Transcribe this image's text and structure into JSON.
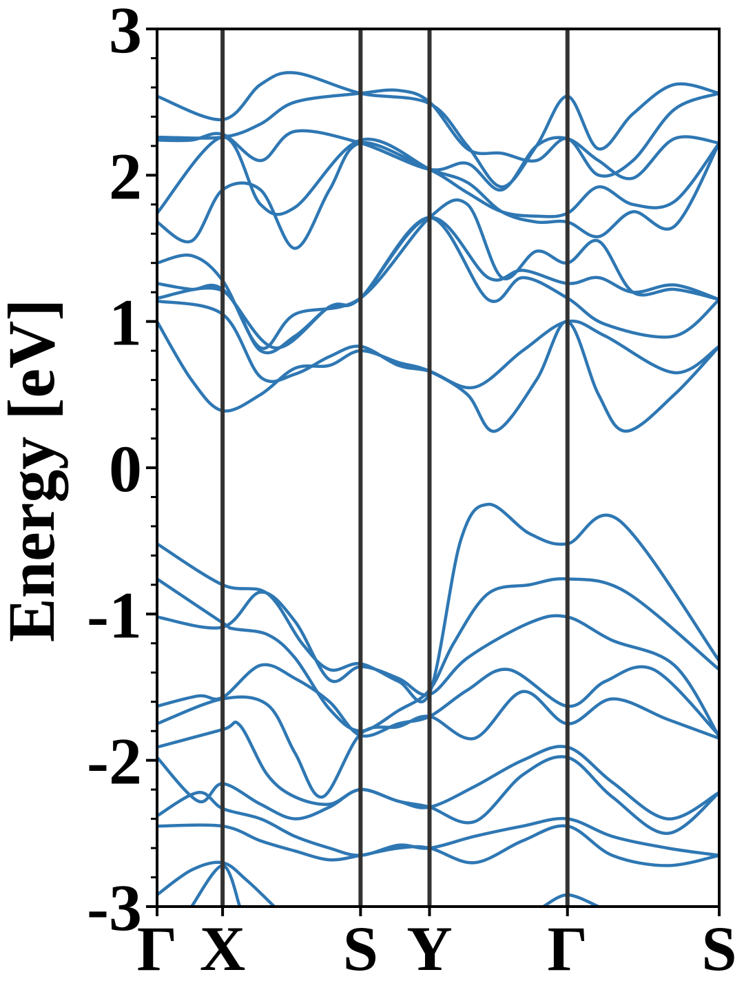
{
  "chart_data": {
    "type": "line",
    "title": "",
    "ylabel": "Energy [eV]",
    "xlabel": "",
    "ylim": [
      -3,
      3
    ],
    "xlim": [
      0,
      8.15
    ],
    "yticks": [
      "-3",
      "-2",
      "-1",
      "0",
      "1",
      "2",
      "3"
    ],
    "grid": false,
    "line_color": "#2e77b3",
    "kpath_line_color": "#333333",
    "kpoints": [
      {
        "label": "Γ",
        "x": 0
      },
      {
        "label": "X",
        "x": 0.95
      },
      {
        "label": "S",
        "x": 2.95
      },
      {
        "label": "Y",
        "x": 3.95
      },
      {
        "label": "Γ",
        "x": 5.95
      },
      {
        "label": "S",
        "x": 8.15
      }
    ],
    "series": [
      {
        "points": [
          [
            0,
            -0.52
          ],
          [
            0.95,
            -0.8
          ],
          [
            1.6,
            -0.86
          ],
          [
            2.1,
            -1.2
          ],
          [
            2.5,
            -1.38
          ],
          [
            2.95,
            -1.34
          ],
          [
            3.5,
            -1.46
          ],
          [
            3.95,
            -1.54
          ],
          [
            4.4,
            -0.5
          ],
          [
            4.8,
            -0.25
          ],
          [
            5.4,
            -0.45
          ],
          [
            5.95,
            -0.52
          ],
          [
            6.7,
            -0.36
          ],
          [
            8.15,
            -1.32
          ]
        ]
      },
      {
        "points": [
          [
            0,
            -0.76
          ],
          [
            0.95,
            -1.06
          ],
          [
            1.1,
            -1.1
          ],
          [
            1.6,
            -1.14
          ],
          [
            2.0,
            -1.3
          ],
          [
            2.5,
            -1.65
          ],
          [
            2.95,
            -1.8
          ],
          [
            3.5,
            -1.66
          ],
          [
            3.95,
            -1.52
          ],
          [
            4.3,
            -1.2
          ],
          [
            4.8,
            -0.86
          ],
          [
            5.4,
            -0.8
          ],
          [
            5.95,
            -0.76
          ],
          [
            6.8,
            -0.85
          ],
          [
            8.15,
            -1.38
          ]
        ]
      },
      {
        "points": [
          [
            0,
            -1.02
          ],
          [
            0.95,
            -1.09
          ],
          [
            1.5,
            -0.85
          ],
          [
            2.0,
            -1.05
          ],
          [
            2.5,
            -1.45
          ],
          [
            2.95,
            -1.36
          ],
          [
            3.5,
            -1.44
          ],
          [
            3.95,
            -1.55
          ],
          [
            4.5,
            -1.3
          ],
          [
            5.4,
            -1.06
          ],
          [
            5.95,
            -1.02
          ],
          [
            6.6,
            -1.18
          ],
          [
            7.5,
            -1.35
          ],
          [
            8.15,
            -1.84
          ]
        ]
      },
      {
        "points": [
          [
            0,
            -1.63
          ],
          [
            0.6,
            -1.56
          ],
          [
            0.95,
            -1.57
          ],
          [
            1.5,
            -1.35
          ],
          [
            2.0,
            -1.44
          ],
          [
            2.5,
            -1.6
          ],
          [
            2.95,
            -1.83
          ],
          [
            3.5,
            -1.75
          ],
          [
            3.95,
            -1.7
          ],
          [
            4.5,
            -1.52
          ],
          [
            5.1,
            -1.38
          ],
          [
            5.95,
            -1.63
          ],
          [
            6.5,
            -1.46
          ],
          [
            7.2,
            -1.38
          ],
          [
            8.15,
            -1.83
          ]
        ]
      },
      {
        "points": [
          [
            0,
            -1.75
          ],
          [
            0.95,
            -1.58
          ],
          [
            1.6,
            -1.62
          ],
          [
            2.0,
            -1.95
          ],
          [
            2.4,
            -2.25
          ],
          [
            2.95,
            -1.82
          ],
          [
            3.5,
            -1.77
          ],
          [
            3.95,
            -1.7
          ],
          [
            4.6,
            -1.85
          ],
          [
            5.3,
            -1.53
          ],
          [
            5.95,
            -1.75
          ],
          [
            6.6,
            -1.58
          ],
          [
            7.4,
            -1.72
          ],
          [
            8.15,
            -1.85
          ]
        ]
      },
      {
        "points": [
          [
            0,
            -1.91
          ],
          [
            0.95,
            -1.79
          ],
          [
            1.2,
            -1.76
          ],
          [
            1.6,
            -2.1
          ],
          [
            2.0,
            -2.25
          ],
          [
            2.5,
            -2.3
          ],
          [
            2.95,
            -2.2
          ],
          [
            3.5,
            -2.28
          ],
          [
            3.95,
            -2.32
          ],
          [
            4.6,
            -2.18
          ],
          [
            5.3,
            -2.0
          ],
          [
            5.95,
            -1.91
          ],
          [
            6.6,
            -2.15
          ],
          [
            7.4,
            -2.4
          ],
          [
            8.15,
            -2.22
          ]
        ]
      },
      {
        "points": [
          [
            0,
            -1.98
          ],
          [
            0.6,
            -2.28
          ],
          [
            0.95,
            -2.16
          ],
          [
            1.5,
            -2.3
          ],
          [
            2.0,
            -2.4
          ],
          [
            2.5,
            -2.32
          ],
          [
            2.95,
            -2.2
          ],
          [
            3.5,
            -2.28
          ],
          [
            3.95,
            -2.32
          ],
          [
            4.6,
            -2.42
          ],
          [
            5.3,
            -2.1
          ],
          [
            5.95,
            -1.98
          ],
          [
            6.6,
            -2.25
          ],
          [
            7.4,
            -2.5
          ],
          [
            8.15,
            -2.22
          ]
        ]
      },
      {
        "points": [
          [
            0,
            -2.38
          ],
          [
            0.6,
            -2.22
          ],
          [
            0.95,
            -2.33
          ],
          [
            1.5,
            -2.4
          ],
          [
            2.0,
            -2.52
          ],
          [
            2.5,
            -2.6
          ],
          [
            2.95,
            -2.65
          ],
          [
            3.5,
            -2.58
          ],
          [
            3.95,
            -2.6
          ],
          [
            4.6,
            -2.52
          ],
          [
            5.3,
            -2.45
          ],
          [
            5.95,
            -2.4
          ],
          [
            6.6,
            -2.52
          ],
          [
            7.4,
            -2.6
          ],
          [
            8.15,
            -2.65
          ]
        ]
      },
      {
        "points": [
          [
            0,
            -2.45
          ],
          [
            0.95,
            -2.45
          ],
          [
            1.5,
            -2.55
          ],
          [
            2.0,
            -2.62
          ],
          [
            2.5,
            -2.68
          ],
          [
            2.95,
            -2.65
          ],
          [
            3.5,
            -2.6
          ],
          [
            3.95,
            -2.6
          ],
          [
            4.6,
            -2.7
          ],
          [
            5.3,
            -2.55
          ],
          [
            5.95,
            -2.45
          ],
          [
            6.6,
            -2.65
          ],
          [
            7.4,
            -2.72
          ],
          [
            8.15,
            -2.65
          ]
        ]
      },
      {
        "points": [
          [
            0,
            -2.92
          ],
          [
            0.5,
            -2.75
          ],
          [
            0.95,
            -2.7
          ],
          [
            1.3,
            -2.82
          ],
          [
            1.7,
            -3.0
          ]
        ]
      },
      {
        "points": [
          [
            0.5,
            -3.0
          ],
          [
            0.95,
            -2.72
          ],
          [
            1.2,
            -3.0
          ]
        ]
      },
      {
        "points": [
          [
            5.6,
            -3.0
          ],
          [
            5.95,
            -2.92
          ],
          [
            6.4,
            -3.0
          ]
        ]
      },
      {
        "points": [
          [
            0,
            1.0
          ],
          [
            0.5,
            0.6
          ],
          [
            0.95,
            0.39
          ],
          [
            1.5,
            0.5
          ],
          [
            2.0,
            0.68
          ],
          [
            2.5,
            0.7
          ],
          [
            2.95,
            0.8
          ],
          [
            3.5,
            0.72
          ],
          [
            3.95,
            0.66
          ],
          [
            4.5,
            0.5
          ],
          [
            4.9,
            0.25
          ],
          [
            5.5,
            0.6
          ],
          [
            5.95,
            1.0
          ],
          [
            6.4,
            0.5
          ],
          [
            6.8,
            0.25
          ],
          [
            7.5,
            0.5
          ],
          [
            8.15,
            0.83
          ]
        ]
      },
      {
        "points": [
          [
            0,
            1.14
          ],
          [
            0.95,
            1.05
          ],
          [
            1.5,
            0.62
          ],
          [
            2.0,
            0.64
          ],
          [
            2.5,
            0.76
          ],
          [
            2.95,
            0.83
          ],
          [
            3.5,
            0.7
          ],
          [
            3.95,
            0.66
          ],
          [
            4.6,
            0.55
          ],
          [
            5.3,
            0.8
          ],
          [
            5.95,
            1.0
          ],
          [
            6.5,
            0.9
          ],
          [
            7.5,
            0.65
          ],
          [
            8.15,
            0.83
          ]
        ]
      },
      {
        "points": [
          [
            0,
            1.16
          ],
          [
            0.95,
            1.21
          ],
          [
            1.5,
            0.8
          ],
          [
            2.0,
            0.9
          ],
          [
            2.5,
            1.1
          ],
          [
            2.95,
            1.16
          ],
          [
            3.95,
            1.71
          ],
          [
            4.8,
            1.15
          ],
          [
            5.3,
            1.3
          ],
          [
            5.95,
            1.16
          ],
          [
            6.5,
            0.98
          ],
          [
            7.5,
            0.9
          ],
          [
            8.15,
            1.15
          ]
        ]
      },
      {
        "points": [
          [
            0,
            1.26
          ],
          [
            0.5,
            1.22
          ],
          [
            0.95,
            1.22
          ],
          [
            1.7,
            0.82
          ],
          [
            2.5,
            1.1
          ],
          [
            2.95,
            1.16
          ],
          [
            3.95,
            1.71
          ],
          [
            4.8,
            1.3
          ],
          [
            5.3,
            1.35
          ],
          [
            5.95,
            1.26
          ],
          [
            6.4,
            1.3
          ],
          [
            6.9,
            1.2
          ],
          [
            7.5,
            1.25
          ],
          [
            8.15,
            1.15
          ]
        ]
      },
      {
        "points": [
          [
            0,
            1.4
          ],
          [
            0.5,
            1.45
          ],
          [
            0.95,
            1.28
          ],
          [
            1.5,
            0.82
          ],
          [
            2.0,
            1.05
          ],
          [
            2.95,
            1.16
          ],
          [
            3.95,
            1.71
          ],
          [
            4.5,
            1.8
          ],
          [
            5.0,
            1.3
          ],
          [
            5.5,
            1.48
          ],
          [
            5.95,
            1.4
          ],
          [
            6.4,
            1.55
          ],
          [
            6.9,
            1.2
          ],
          [
            7.5,
            1.22
          ],
          [
            8.15,
            1.15
          ]
        ]
      },
      {
        "points": [
          [
            0,
            1.68
          ],
          [
            0.5,
            1.55
          ],
          [
            0.95,
            1.9
          ],
          [
            1.5,
            1.9
          ],
          [
            2.0,
            1.5
          ],
          [
            2.5,
            1.9
          ],
          [
            2.95,
            2.22
          ],
          [
            3.95,
            2.04
          ],
          [
            4.5,
            1.95
          ],
          [
            5.0,
            1.75
          ],
          [
            5.5,
            1.68
          ],
          [
            5.95,
            1.68
          ],
          [
            6.4,
            1.58
          ],
          [
            6.9,
            1.75
          ],
          [
            7.5,
            1.65
          ],
          [
            8.15,
            2.22
          ]
        ]
      },
      {
        "points": [
          [
            0,
            1.74
          ],
          [
            0.95,
            2.26
          ],
          [
            1.5,
            1.8
          ],
          [
            2.0,
            1.78
          ],
          [
            2.95,
            2.24
          ],
          [
            3.95,
            2.04
          ],
          [
            4.5,
            1.88
          ],
          [
            5.0,
            1.75
          ],
          [
            5.5,
            1.72
          ],
          [
            5.95,
            1.74
          ],
          [
            6.4,
            1.92
          ],
          [
            6.9,
            1.8
          ],
          [
            7.5,
            1.82
          ],
          [
            8.15,
            2.22
          ]
        ]
      },
      {
        "points": [
          [
            0,
            2.24
          ],
          [
            0.5,
            2.24
          ],
          [
            0.95,
            2.28
          ],
          [
            1.5,
            2.1
          ],
          [
            2.0,
            2.3
          ],
          [
            2.95,
            2.22
          ],
          [
            3.95,
            2.04
          ],
          [
            4.5,
            2.08
          ],
          [
            5.0,
            1.9
          ],
          [
            5.5,
            2.2
          ],
          [
            5.95,
            2.25
          ],
          [
            6.4,
            2.1
          ],
          [
            6.9,
            1.98
          ],
          [
            7.5,
            2.25
          ],
          [
            8.15,
            2.22
          ]
        ]
      },
      {
        "points": [
          [
            0,
            2.54
          ],
          [
            0.95,
            2.38
          ],
          [
            1.5,
            2.62
          ],
          [
            2.0,
            2.7
          ],
          [
            2.95,
            2.56
          ],
          [
            3.95,
            2.49
          ],
          [
            4.5,
            2.2
          ],
          [
            5.0,
            1.92
          ],
          [
            5.5,
            2.2
          ],
          [
            5.95,
            2.54
          ],
          [
            6.4,
            2.18
          ],
          [
            6.9,
            2.42
          ],
          [
            7.5,
            2.62
          ],
          [
            8.15,
            2.56
          ]
        ]
      },
      {
        "points": [
          [
            0,
            2.26
          ],
          [
            0.95,
            2.26
          ],
          [
            1.5,
            2.35
          ],
          [
            2.0,
            2.5
          ],
          [
            2.95,
            2.56
          ],
          [
            3.5,
            2.58
          ],
          [
            3.95,
            2.5
          ],
          [
            4.5,
            2.18
          ],
          [
            5.0,
            2.15
          ],
          [
            5.5,
            2.1
          ],
          [
            5.95,
            2.25
          ],
          [
            6.4,
            2.0
          ],
          [
            6.9,
            2.1
          ],
          [
            7.5,
            2.45
          ],
          [
            8.15,
            2.56
          ]
        ]
      }
    ]
  }
}
